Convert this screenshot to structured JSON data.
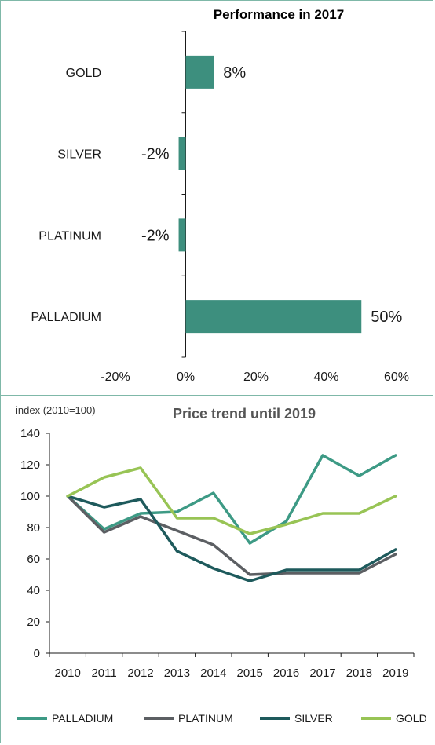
{
  "charts": [
    {
      "title": "Performance in 2017",
      "chart_data": {
        "type": "bar",
        "orientation": "horizontal",
        "title": "Performance in 2017",
        "categories": [
          "GOLD",
          "SILVER",
          "PLATINUM",
          "PALLADIUM"
        ],
        "values": [
          8,
          -2,
          -2,
          50
        ],
        "value_labels": [
          "8%",
          "-2%",
          "-2%",
          "50%"
        ],
        "xlim": [
          -20,
          60
        ],
        "xticks": [
          -20,
          0,
          20,
          40,
          60
        ],
        "xtick_labels": [
          "-20%",
          "0%",
          "20%",
          "40%",
          "60%"
        ],
        "bar_color": "#3d8f7e",
        "grid": false
      }
    },
    {
      "title": "Price trend until 2019",
      "ylabel": "index (2010=100)",
      "chart_data": {
        "type": "line",
        "title": "Price trend until 2019",
        "ylabel": "index (2010=100)",
        "x": [
          2010,
          2011,
          2012,
          2013,
          2014,
          2015,
          2016,
          2017,
          2018,
          2019
        ],
        "xtick_labels": [
          "2010",
          "2011",
          "2012",
          "2013",
          "2014",
          "2015",
          "2016",
          "2017",
          "2018",
          "2019"
        ],
        "ylim": [
          0,
          140
        ],
        "yticks": [
          0,
          20,
          40,
          60,
          80,
          100,
          120,
          140
        ],
        "ytick_labels": [
          "0",
          "20",
          "40",
          "60",
          "80",
          "100",
          "120",
          "140"
        ],
        "grid": false,
        "legend": "bottom",
        "series": [
          {
            "name": "PALLADIUM",
            "color": "#3d9a85",
            "values": [
              100,
              79,
              89,
              90,
              102,
              70,
              84,
              126,
              113,
              126
            ]
          },
          {
            "name": "PLATINUM",
            "color": "#5c5f63",
            "values": [
              100,
              77,
              87,
              78,
              69,
              50,
              51,
              51,
              51,
              63
            ]
          },
          {
            "name": "SILVER",
            "color": "#1e5a5c",
            "values": [
              100,
              93,
              98,
              65,
              54,
              46,
              53,
              53,
              53,
              66
            ]
          },
          {
            "name": "GOLD",
            "color": "#98c455",
            "values": [
              100,
              112,
              118,
              86,
              86,
              76,
              82,
              89,
              89,
              100
            ]
          }
        ]
      }
    }
  ]
}
